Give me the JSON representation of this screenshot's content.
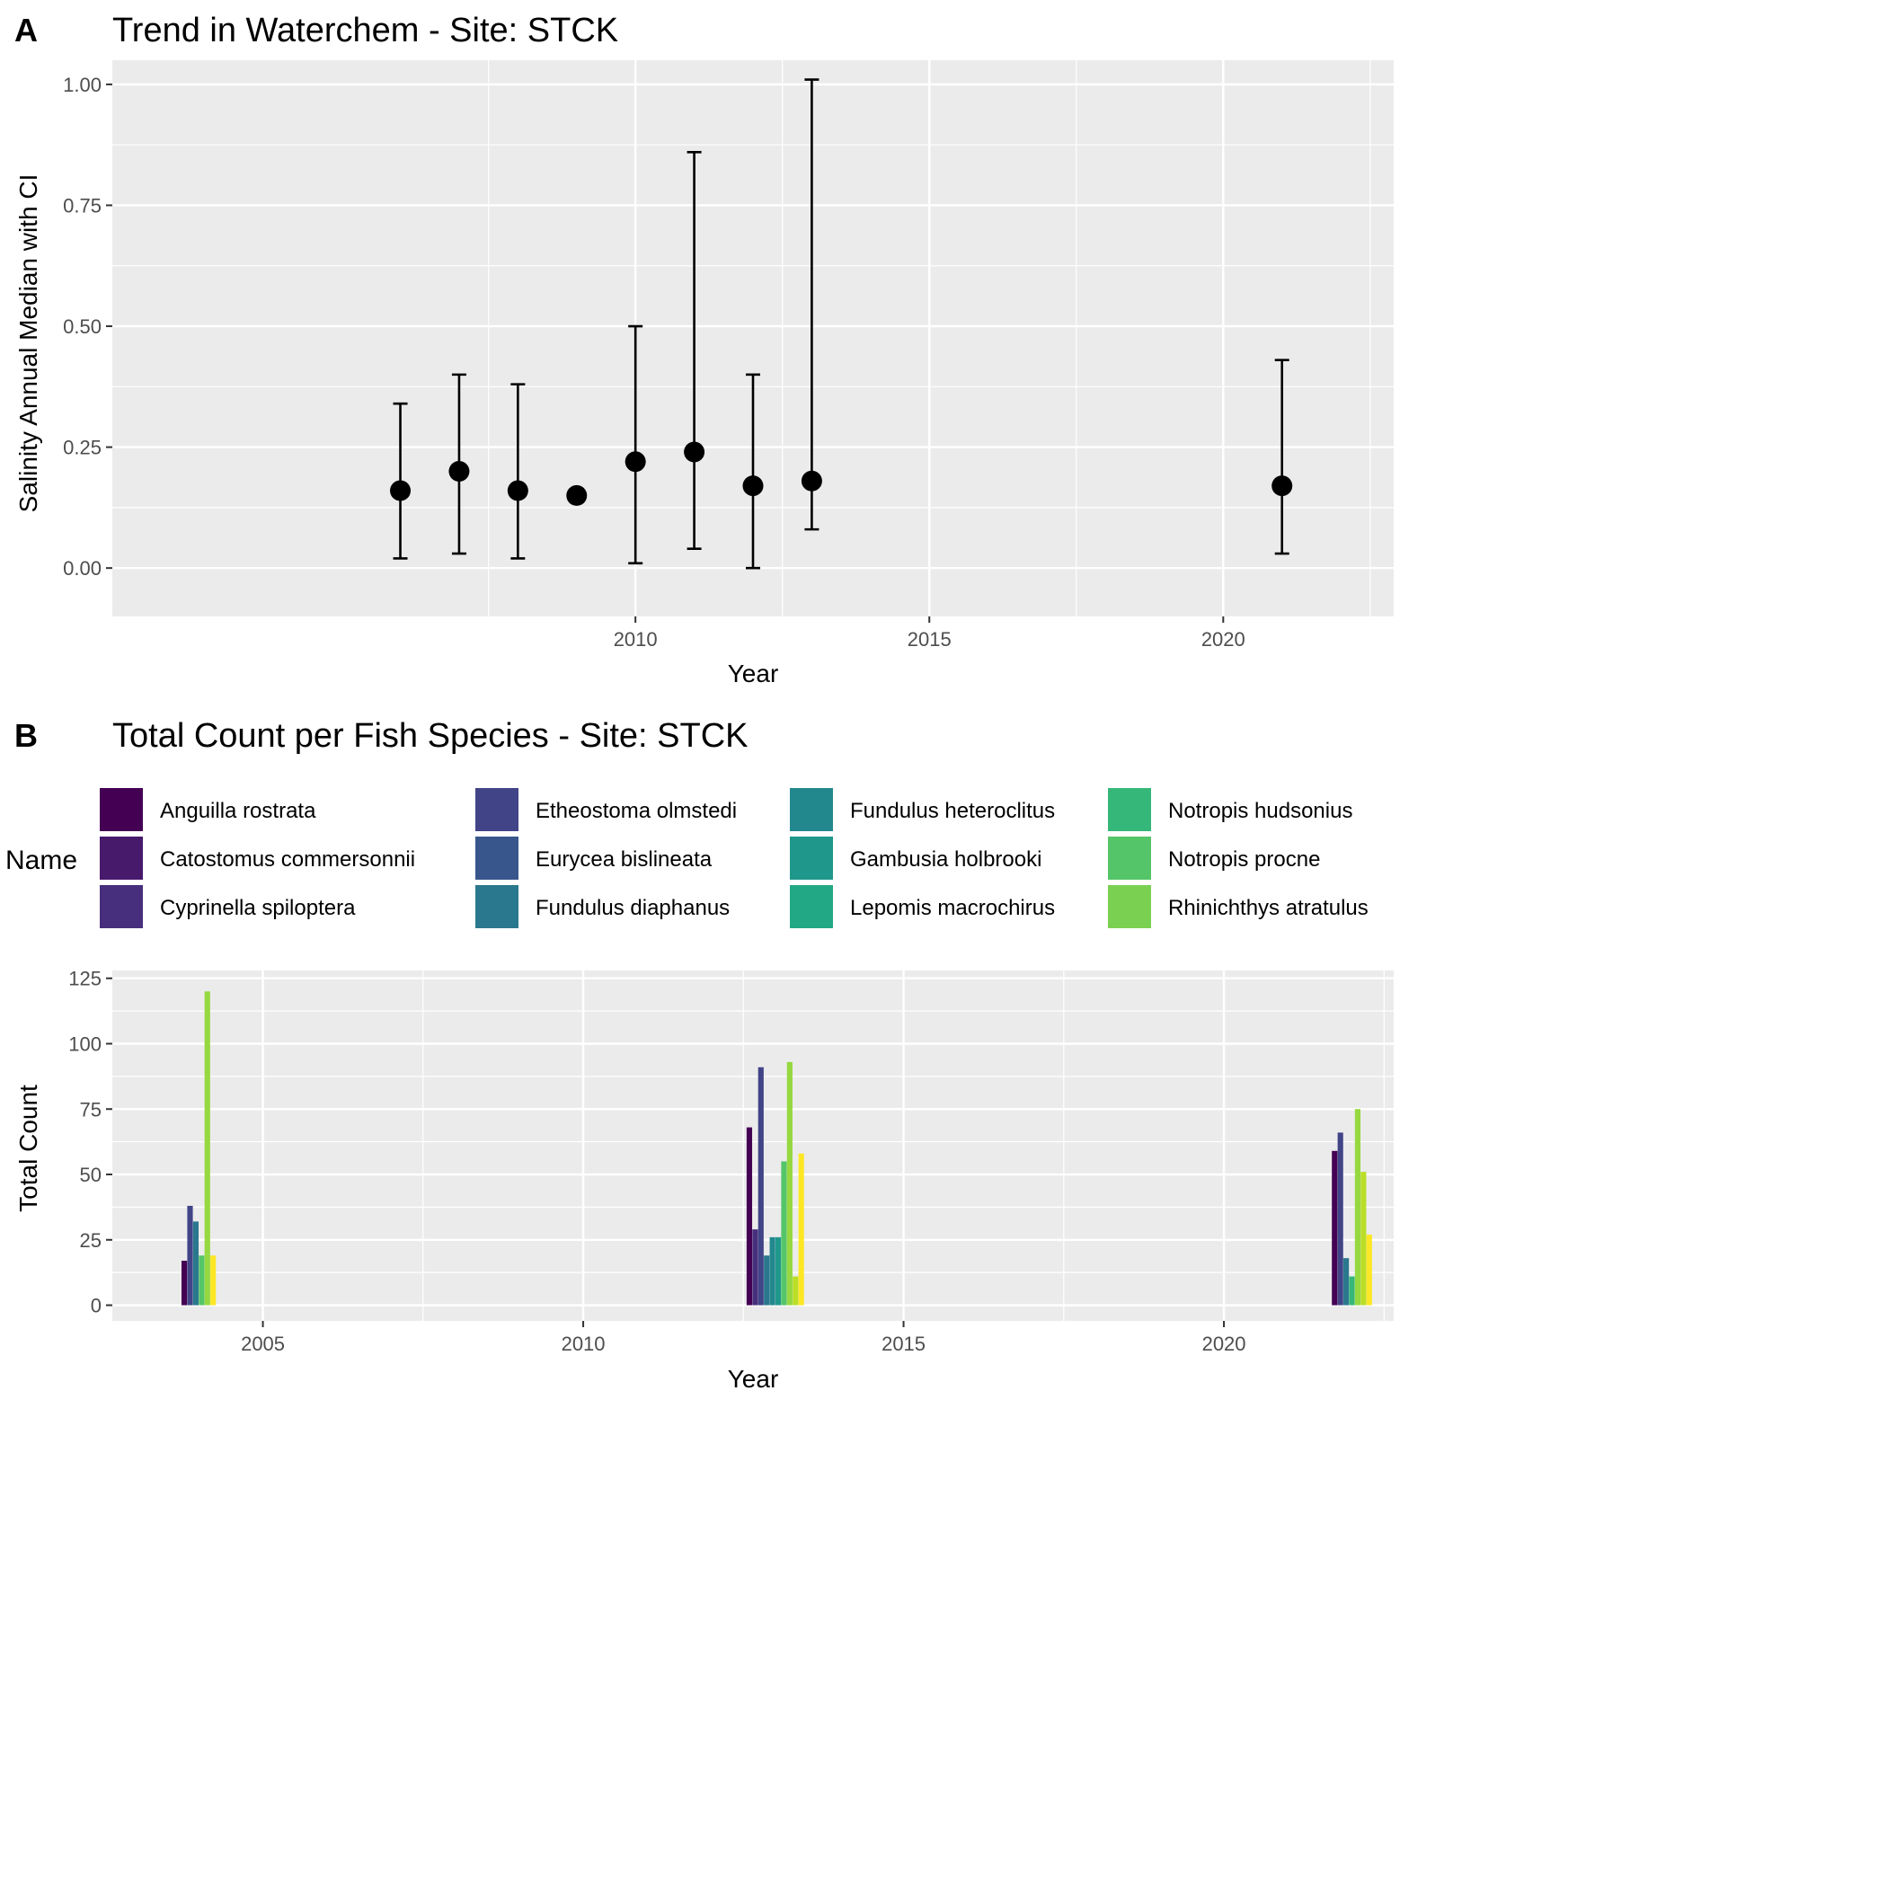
{
  "chart_data": [
    {
      "panel": "A",
      "type": "scatter",
      "title": "Trend in Waterchem - Site: STCK",
      "xlabel": "Year",
      "ylabel": "Salinity Annual Median with CI",
      "xlim": [
        2001.1,
        2022.9
      ],
      "ylim": [
        -0.1,
        1.05
      ],
      "x_ticks": [
        2010,
        2015,
        2020
      ],
      "x_tick_labels": [
        "2010",
        "2015",
        "2020"
      ],
      "y_ticks": [
        0,
        0.25,
        0.5,
        0.75,
        1.0
      ],
      "y_tick_labels": [
        "0.00",
        "0.25",
        "0.50",
        "0.75",
        "1.00"
      ],
      "grid": true,
      "points": [
        {
          "x": 2006,
          "y": 0.16,
          "lower": 0.02,
          "upper": 0.34
        },
        {
          "x": 2007,
          "y": 0.2,
          "lower": 0.03,
          "upper": 0.4
        },
        {
          "x": 2008,
          "y": 0.16,
          "lower": 0.02,
          "upper": 0.38
        },
        {
          "x": 2009,
          "y": 0.15,
          "lower": null,
          "upper": null
        },
        {
          "x": 2010,
          "y": 0.22,
          "lower": 0.01,
          "upper": 0.5
        },
        {
          "x": 2011,
          "y": 0.24,
          "lower": 0.04,
          "upper": 0.86
        },
        {
          "x": 2012,
          "y": 0.17,
          "lower": 0.0,
          "upper": 0.4
        },
        {
          "x": 2013,
          "y": 0.18,
          "lower": 0.08,
          "upper": 1.01
        },
        {
          "x": 2021,
          "y": 0.17,
          "lower": 0.03,
          "upper": 0.43
        }
      ]
    },
    {
      "panel": "B",
      "type": "bar",
      "title": "Total Count per Fish Species - Site: STCK",
      "xlabel": "Year",
      "ylabel": "Total Count",
      "legend_title": "Name",
      "legend_position": "top",
      "xlim": [
        2002.65,
        2022.65
      ],
      "ylim": [
        -6,
        128
      ],
      "x_ticks": [
        2005,
        2010,
        2015,
        2020
      ],
      "x_tick_labels": [
        "2005",
        "2010",
        "2015",
        "2020"
      ],
      "y_ticks": [
        0,
        25,
        50,
        75,
        100,
        125
      ],
      "y_tick_labels": [
        "0",
        "25",
        "50",
        "75",
        "100",
        "125"
      ],
      "grid": true,
      "legend": [
        {
          "name": "Anguilla rostrata",
          "color": "#440154"
        },
        {
          "name": "Catostomus commersonnii",
          "color": "#481A6C"
        },
        {
          "name": "Cyprinella spiloptera",
          "color": "#472F7D"
        },
        {
          "name": "Etheostoma olmstedi",
          "color": "#414487"
        },
        {
          "name": "Eurycea bislineata",
          "color": "#39568C"
        },
        {
          "name": "Fundulus diaphanus",
          "color": "#2A788E"
        },
        {
          "name": "Fundulus heteroclitus",
          "color": "#23888E"
        },
        {
          "name": "Gambusia holbrooki",
          "color": "#1F988B"
        },
        {
          "name": "Lepomis macrochirus",
          "color": "#22A884"
        },
        {
          "name": "Notropis hudsonius",
          "color": "#35B779"
        },
        {
          "name": "Notropis procne",
          "color": "#54C568"
        },
        {
          "name": "Rhinichthys atratulus",
          "color": "#7AD151"
        }
      ],
      "bar_groups": [
        {
          "year": 2004,
          "bars": [
            {
              "value": 17,
              "color": "#440154"
            },
            {
              "value": 38,
              "color": "#414487"
            },
            {
              "value": 32,
              "color": "#2A788E"
            },
            {
              "value": 19,
              "color": "#54C568"
            },
            {
              "value": 120,
              "color": "#95D840"
            },
            {
              "value": 19,
              "color": "#FDE725"
            }
          ]
        },
        {
          "year": 2013,
          "bars": [
            {
              "value": 68,
              "color": "#440154"
            },
            {
              "value": 29,
              "color": "#472F7D"
            },
            {
              "value": 91,
              "color": "#414487"
            },
            {
              "value": 19,
              "color": "#2A788E"
            },
            {
              "value": 26,
              "color": "#23888E"
            },
            {
              "value": 26,
              "color": "#1F988B"
            },
            {
              "value": 55,
              "color": "#54C568"
            },
            {
              "value": 93,
              "color": "#95D840"
            },
            {
              "value": 11,
              "color": "#BADE28"
            },
            {
              "value": 58,
              "color": "#FDE725"
            }
          ]
        },
        {
          "year": 2022,
          "bars": [
            {
              "value": 59,
              "color": "#440154"
            },
            {
              "value": 66,
              "color": "#414487"
            },
            {
              "value": 18,
              "color": "#2A788E"
            },
            {
              "value": 11,
              "color": "#35B779"
            },
            {
              "value": 75,
              "color": "#95D840"
            },
            {
              "value": 51,
              "color": "#BADE28"
            },
            {
              "value": 27,
              "color": "#FDE725"
            }
          ]
        }
      ]
    }
  ],
  "panel_letters": [
    "A",
    "B"
  ]
}
